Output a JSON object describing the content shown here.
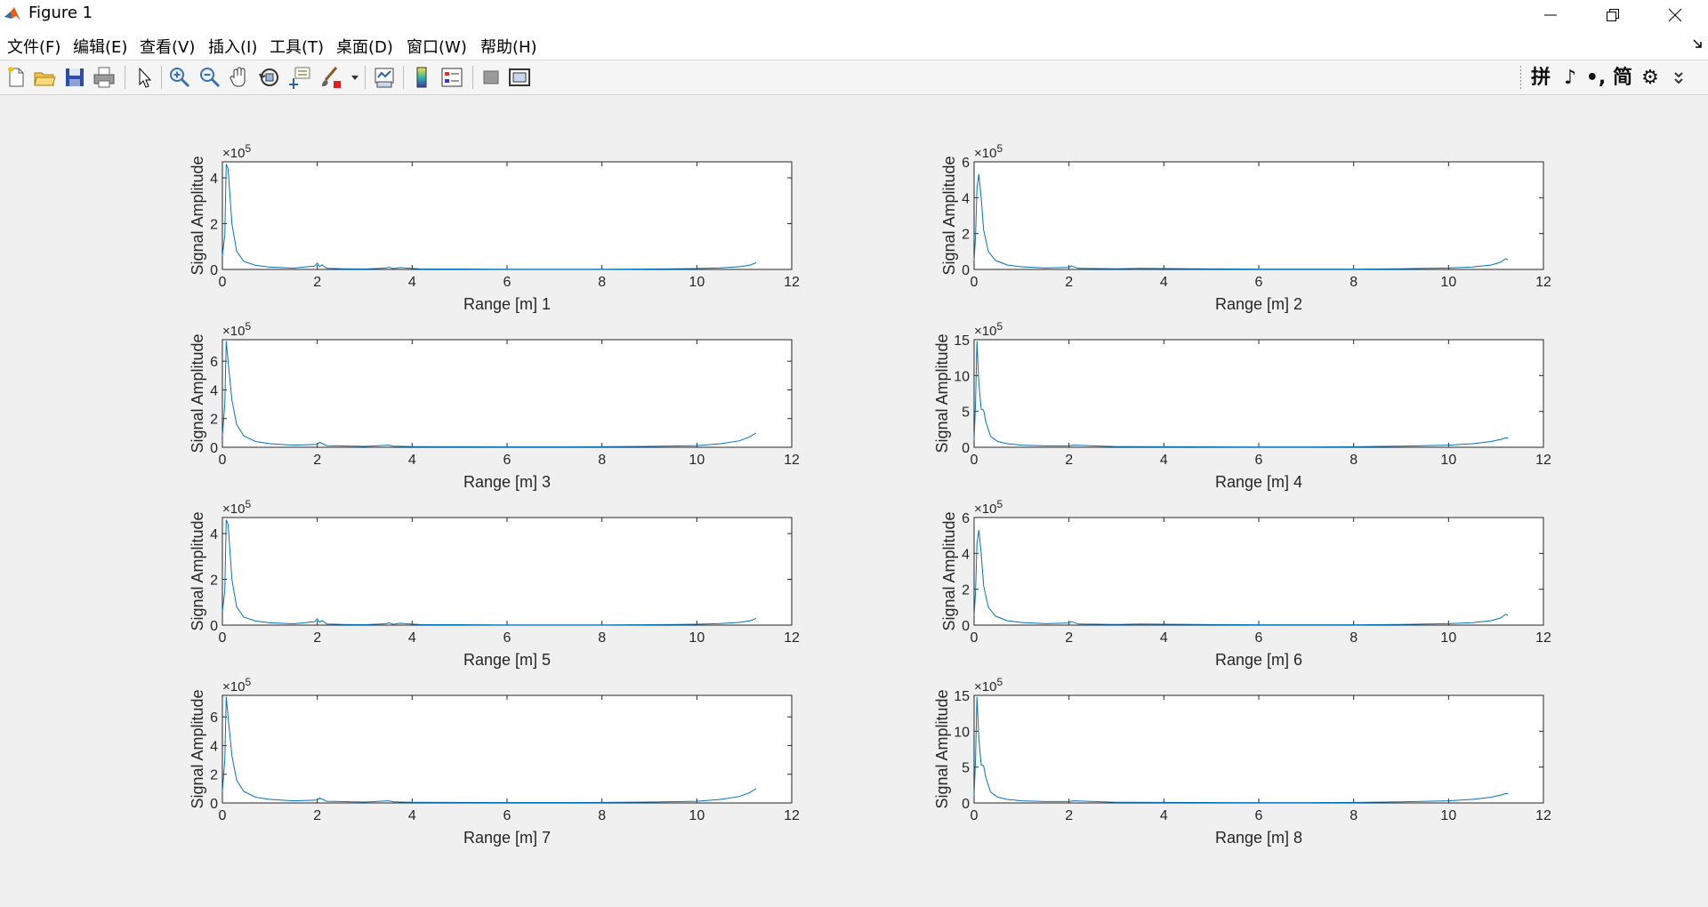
{
  "window": {
    "title": "Figure 1",
    "menu": [
      "文件(F)",
      "编辑(E)",
      "查看(V)",
      "插入(I)",
      "工具(T)",
      "桌面(D)",
      "窗口(W)",
      "帮助(H)"
    ]
  },
  "toolbar": {
    "tools": [
      "new-figure-icon",
      "open-file-icon",
      "save-icon",
      "print-icon",
      "pointer-icon",
      "zoom-in-icon",
      "zoom-out-icon",
      "pan-hand-icon",
      "rotate-3d-icon",
      "data-cursor-icon",
      "brush-icon",
      "link-plot-icon",
      "colorbar-icon",
      "legend-icon",
      "hide-plot-tools-icon",
      "show-plot-tools-icon"
    ],
    "ime_labels": [
      "拼",
      "♪",
      "•,",
      "简",
      "⚙"
    ]
  },
  "colors": {
    "line": "#0072bd",
    "axes_bg": "#ffffff",
    "figure_bg": "#f0f0f0"
  },
  "chart_data": [
    {
      "type": "line",
      "xlabel": "Range [m] 1",
      "ylabel": "Signal Amplitude",
      "exponent": "5",
      "xlim": [
        0,
        12
      ],
      "ylim": [
        0,
        4.7
      ],
      "xticks": [
        0,
        2,
        4,
        6,
        8,
        10,
        12
      ],
      "yticks": [
        0,
        2,
        4
      ],
      "x": [
        0,
        0.05,
        0.08,
        0.12,
        0.2,
        0.3,
        0.45,
        0.7,
        1.0,
        1.5,
        1.95,
        2.0,
        2.05,
        2.1,
        2.2,
        2.5,
        3.0,
        3.45,
        3.5,
        3.6,
        3.75,
        3.9,
        4.2,
        5.0,
        6.0,
        7.0,
        8.0,
        9.0,
        10.0,
        10.5,
        10.9,
        11.1,
        11.2,
        11.25
      ],
      "y": [
        0.6,
        1.5,
        4.6,
        4.4,
        2.0,
        0.8,
        0.35,
        0.18,
        0.1,
        0.06,
        0.15,
        0.28,
        0.12,
        0.2,
        0.05,
        0.03,
        0.02,
        0.06,
        0.1,
        0.04,
        0.08,
        0.06,
        0.02,
        0.02,
        0.01,
        0.01,
        0.01,
        0.02,
        0.04,
        0.07,
        0.12,
        0.18,
        0.25,
        0.3
      ]
    },
    {
      "type": "line",
      "xlabel": "Range [m] 2",
      "ylabel": "Signal Amplitude",
      "exponent": "5",
      "xlim": [
        0,
        12
      ],
      "ylim": [
        0,
        6
      ],
      "xticks": [
        0,
        2,
        4,
        6,
        8,
        10,
        12
      ],
      "yticks": [
        0,
        2,
        4,
        6
      ],
      "x": [
        0,
        0.03,
        0.06,
        0.1,
        0.15,
        0.2,
        0.3,
        0.45,
        0.7,
        1.0,
        1.5,
        2.0,
        2.05,
        2.2,
        3.0,
        3.5,
        4.0,
        5.0,
        6.0,
        7.0,
        8.0,
        9.0,
        10.0,
        10.5,
        10.9,
        11.1,
        11.2,
        11.25
      ],
      "y": [
        0.5,
        1.8,
        4.5,
        5.3,
        4.0,
        2.2,
        1.0,
        0.5,
        0.25,
        0.15,
        0.08,
        0.12,
        0.2,
        0.06,
        0.04,
        0.06,
        0.05,
        0.03,
        0.02,
        0.02,
        0.02,
        0.04,
        0.08,
        0.14,
        0.25,
        0.4,
        0.6,
        0.55
      ]
    },
    {
      "type": "line",
      "xlabel": "Range [m] 3",
      "ylabel": "Signal Amplitude",
      "exponent": "5",
      "xlim": [
        0,
        12
      ],
      "ylim": [
        0,
        7.5
      ],
      "xticks": [
        0,
        2,
        4,
        6,
        8,
        10,
        12
      ],
      "yticks": [
        0,
        2,
        4,
        6
      ],
      "x": [
        0,
        0.05,
        0.08,
        0.12,
        0.2,
        0.3,
        0.45,
        0.7,
        1.0,
        1.5,
        2.0,
        2.05,
        2.2,
        3.0,
        3.5,
        3.6,
        4.0,
        5.0,
        6.0,
        7.0,
        8.0,
        9.0,
        10.0,
        10.5,
        10.9,
        11.1,
        11.2,
        11.25
      ],
      "y": [
        0.8,
        3.0,
        7.4,
        6.0,
        3.3,
        1.6,
        0.8,
        0.4,
        0.25,
        0.15,
        0.2,
        0.35,
        0.12,
        0.06,
        0.15,
        0.08,
        0.05,
        0.04,
        0.03,
        0.03,
        0.04,
        0.06,
        0.12,
        0.25,
        0.45,
        0.7,
        0.9,
        1.0
      ]
    },
    {
      "type": "line",
      "xlabel": "Range [m] 4",
      "ylabel": "Signal Amplitude",
      "exponent": "5",
      "xlim": [
        0,
        12
      ],
      "ylim": [
        0,
        15
      ],
      "xticks": [
        0,
        2,
        4,
        6,
        8,
        10,
        12
      ],
      "yticks": [
        0,
        5,
        10,
        15
      ],
      "x": [
        0,
        0.03,
        0.06,
        0.1,
        0.15,
        0.2,
        0.25,
        0.35,
        0.5,
        0.7,
        1.0,
        1.5,
        2.0,
        2.1,
        3.0,
        4.0,
        5.0,
        6.0,
        7.0,
        8.0,
        9.0,
        10.0,
        10.5,
        10.9,
        11.1,
        11.2,
        11.25
      ],
      "y": [
        1.0,
        6.0,
        14.8,
        9.0,
        5.3,
        5.2,
        3.5,
        1.5,
        0.8,
        0.5,
        0.3,
        0.2,
        0.2,
        0.3,
        0.1,
        0.08,
        0.06,
        0.05,
        0.05,
        0.08,
        0.15,
        0.3,
        0.5,
        0.8,
        1.1,
        1.3,
        1.3
      ]
    },
    {
      "type": "line",
      "xlabel": "Range [m] 5",
      "ylabel": "Signal Amplitude",
      "exponent": "5",
      "xlim": [
        0,
        12
      ],
      "ylim": [
        0,
        4.7
      ],
      "xticks": [
        0,
        2,
        4,
        6,
        8,
        10,
        12
      ],
      "yticks": [
        0,
        2,
        4
      ],
      "x": [
        0,
        0.05,
        0.08,
        0.12,
        0.2,
        0.3,
        0.45,
        0.7,
        1.0,
        1.5,
        1.95,
        2.0,
        2.05,
        2.1,
        2.2,
        2.5,
        3.0,
        3.45,
        3.5,
        3.6,
        3.75,
        3.9,
        4.2,
        5.0,
        6.0,
        7.0,
        8.0,
        9.0,
        10.0,
        10.5,
        10.9,
        11.1,
        11.2,
        11.25
      ],
      "y": [
        0.6,
        1.5,
        4.6,
        4.4,
        2.0,
        0.8,
        0.35,
        0.18,
        0.1,
        0.06,
        0.15,
        0.28,
        0.12,
        0.2,
        0.05,
        0.03,
        0.02,
        0.06,
        0.1,
        0.04,
        0.08,
        0.06,
        0.02,
        0.02,
        0.01,
        0.01,
        0.01,
        0.02,
        0.04,
        0.07,
        0.12,
        0.18,
        0.25,
        0.3
      ]
    },
    {
      "type": "line",
      "xlabel": "Range [m] 6",
      "ylabel": "Signal Amplitude",
      "exponent": "5",
      "xlim": [
        0,
        12
      ],
      "ylim": [
        0,
        6
      ],
      "xticks": [
        0,
        2,
        4,
        6,
        8,
        10,
        12
      ],
      "yticks": [
        0,
        2,
        4,
        6
      ],
      "x": [
        0,
        0.03,
        0.06,
        0.1,
        0.15,
        0.2,
        0.3,
        0.45,
        0.7,
        1.0,
        1.5,
        2.0,
        2.05,
        2.2,
        3.0,
        3.5,
        4.0,
        5.0,
        6.0,
        7.0,
        8.0,
        9.0,
        10.0,
        10.5,
        10.9,
        11.1,
        11.2,
        11.25
      ],
      "y": [
        0.5,
        1.8,
        4.5,
        5.3,
        4.0,
        2.2,
        1.0,
        0.5,
        0.25,
        0.15,
        0.08,
        0.12,
        0.2,
        0.06,
        0.04,
        0.06,
        0.05,
        0.03,
        0.02,
        0.02,
        0.02,
        0.04,
        0.08,
        0.14,
        0.25,
        0.4,
        0.6,
        0.55
      ]
    },
    {
      "type": "line",
      "xlabel": "Range [m] 7",
      "ylabel": "Signal Amplitude",
      "exponent": "5",
      "xlim": [
        0,
        12
      ],
      "ylim": [
        0,
        7.5
      ],
      "xticks": [
        0,
        2,
        4,
        6,
        8,
        10,
        12
      ],
      "yticks": [
        0,
        2,
        4,
        6
      ],
      "x": [
        0,
        0.05,
        0.08,
        0.12,
        0.2,
        0.3,
        0.45,
        0.7,
        1.0,
        1.5,
        2.0,
        2.05,
        2.2,
        3.0,
        3.5,
        3.6,
        4.0,
        5.0,
        6.0,
        7.0,
        8.0,
        9.0,
        10.0,
        10.5,
        10.9,
        11.1,
        11.2,
        11.25
      ],
      "y": [
        0.8,
        3.0,
        7.4,
        6.0,
        3.3,
        1.6,
        0.8,
        0.4,
        0.25,
        0.15,
        0.2,
        0.35,
        0.12,
        0.06,
        0.15,
        0.08,
        0.05,
        0.04,
        0.03,
        0.03,
        0.04,
        0.06,
        0.12,
        0.25,
        0.45,
        0.7,
        0.9,
        1.0
      ]
    },
    {
      "type": "line",
      "xlabel": "Range [m] 8",
      "ylabel": "Signal Amplitude",
      "exponent": "5",
      "xlim": [
        0,
        12
      ],
      "ylim": [
        0,
        15
      ],
      "xticks": [
        0,
        2,
        4,
        6,
        8,
        10,
        12
      ],
      "yticks": [
        0,
        5,
        10,
        15
      ],
      "x": [
        0,
        0.03,
        0.06,
        0.1,
        0.15,
        0.2,
        0.25,
        0.35,
        0.5,
        0.7,
        1.0,
        1.5,
        2.0,
        2.1,
        3.0,
        4.0,
        5.0,
        6.0,
        7.0,
        8.0,
        9.0,
        10.0,
        10.5,
        10.9,
        11.1,
        11.2,
        11.25
      ],
      "y": [
        1.0,
        6.0,
        14.8,
        9.0,
        5.3,
        5.2,
        3.5,
        1.5,
        0.8,
        0.5,
        0.3,
        0.2,
        0.2,
        0.3,
        0.1,
        0.08,
        0.06,
        0.05,
        0.05,
        0.08,
        0.15,
        0.3,
        0.5,
        0.8,
        1.1,
        1.3,
        1.3
      ]
    }
  ]
}
